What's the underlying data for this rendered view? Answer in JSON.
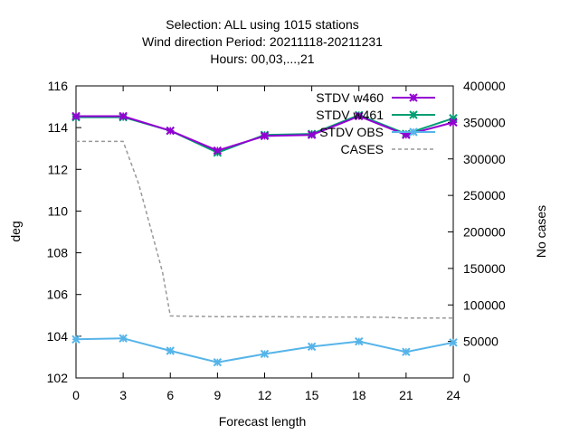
{
  "chart_data": {
    "type": "line",
    "title_lines": [
      "Selection: ALL using  1015 stations",
      "Wind direction   Period: 20211118-20211231",
      "Hours: 00,03,...,21"
    ],
    "xlabel": "Forecast length",
    "ylabel": "deg",
    "y2label": "No cases",
    "x": [
      0,
      3,
      6,
      9,
      12,
      15,
      18,
      21,
      24
    ],
    "xlim": [
      0,
      24
    ],
    "ylim": [
      102,
      116
    ],
    "y2lim": [
      0,
      400000
    ],
    "xticks": [
      "0",
      "3",
      "6",
      "9",
      "12",
      "15",
      "18",
      "21",
      "24"
    ],
    "yticks": [
      "102",
      "104",
      "106",
      "108",
      "110",
      "112",
      "114",
      "116"
    ],
    "y2ticks": [
      "0",
      "50000",
      "100000",
      "150000",
      "200000",
      "250000",
      "300000",
      "350000",
      "400000"
    ],
    "legend_position": "top-right",
    "grid": false,
    "series": [
      {
        "name": "STDV w460",
        "axis": "y",
        "color": "#9400d3",
        "marker": "x",
        "values": [
          114.55,
          114.55,
          113.85,
          112.9,
          113.6,
          113.65,
          114.55,
          113.65,
          114.25
        ]
      },
      {
        "name": "STDV w461",
        "axis": "y",
        "color": "#009e73",
        "marker": "x",
        "values": [
          114.5,
          114.5,
          113.85,
          112.8,
          113.65,
          113.7,
          114.6,
          113.7,
          114.45
        ]
      },
      {
        "name": "STDV OBS",
        "axis": "y",
        "color": "#56b4e9",
        "marker": "x",
        "values": [
          103.85,
          103.9,
          103.3,
          102.75,
          103.15,
          103.5,
          103.75,
          103.25,
          103.7
        ]
      },
      {
        "name": "CASES",
        "axis": "y2",
        "color": "#999999",
        "dashed": true,
        "x": [
          0,
          2.5,
          3,
          4,
          5,
          5.5,
          6,
          9,
          12,
          15,
          18,
          20,
          21,
          24
        ],
        "values": [
          324000,
          324000,
          324000,
          265000,
          185000,
          145000,
          85000,
          84000,
          84000,
          83500,
          83500,
          83000,
          82000,
          82000
        ]
      }
    ]
  }
}
